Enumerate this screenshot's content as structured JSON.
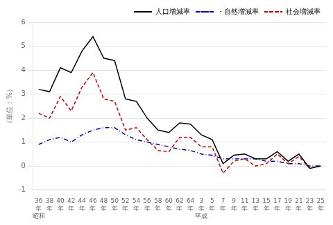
{
  "chart_data": {
    "type": "line",
    "y_label": "（単位：%）",
    "categories": [
      "36",
      "38",
      "40",
      "42",
      "44",
      "46",
      "48",
      "50",
      "52",
      "54",
      "56",
      "58",
      "60",
      "62",
      "64",
      "3",
      "5",
      "7",
      "9",
      "11",
      "13",
      "15",
      "17",
      "19",
      "21",
      "23",
      "25"
    ],
    "series": [
      {
        "name": "人口増減率",
        "color": "#000000",
        "line_style": "solid",
        "marker": "none",
        "values": [
          3.2,
          3.1,
          4.1,
          3.9,
          4.8,
          5.4,
          4.5,
          4.4,
          2.8,
          2.7,
          2.0,
          1.5,
          1.4,
          1.8,
          1.75,
          1.3,
          1.1,
          0.1,
          0.45,
          0.5,
          0.3,
          0.3,
          0.6,
          0.2,
          0.5,
          -0.1,
          0.0
        ]
      },
      {
        "name": "・自然増減率",
        "color": "#0000bb",
        "line_style": "dashdot",
        "marker": "none",
        "values": [
          0.9,
          1.1,
          1.2,
          1.0,
          1.3,
          1.5,
          1.6,
          1.6,
          1.3,
          1.1,
          1.0,
          0.9,
          0.8,
          0.7,
          0.65,
          0.5,
          0.45,
          0.3,
          0.3,
          0.3,
          0.3,
          0.2,
          0.2,
          0.1,
          0.1,
          0.0,
          0.0
        ]
      },
      {
        "name": "社会増減率",
        "color": "#cc0000",
        "line_style": "dashed",
        "marker": "none",
        "values": [
          2.2,
          2.0,
          2.9,
          2.3,
          3.3,
          3.9,
          2.8,
          2.7,
          1.5,
          1.6,
          1.1,
          0.65,
          0.6,
          1.2,
          1.2,
          0.8,
          0.8,
          -0.3,
          0.2,
          0.3,
          0.0,
          0.1,
          0.5,
          0.1,
          0.4,
          -0.1,
          0.0
        ]
      }
    ],
    "annotations": [
      {
        "text": "年",
        "category": "36"
      },
      {
        "text": "年",
        "category": "38"
      },
      {
        "text": "年",
        "category": "40"
      },
      {
        "text": "年",
        "category": "42"
      },
      {
        "text": "年",
        "category": "44"
      },
      {
        "text": "年",
        "category": "46"
      },
      {
        "text": "年",
        "category": "48"
      },
      {
        "text": "年",
        "category": "50"
      },
      {
        "text": "年",
        "category": "52"
      },
      {
        "text": "年",
        "category": "54"
      },
      {
        "text": "年",
        "category": "56"
      },
      {
        "text": "年",
        "category": "58"
      },
      {
        "text": "年",
        "category": "60"
      },
      {
        "text": "年",
        "category": "62"
      },
      {
        "text": "年",
        "category": "64"
      },
      {
        "text": "年",
        "category": "3"
      },
      {
        "text": "年",
        "category": "5"
      },
      {
        "text": "年",
        "category": "7"
      },
      {
        "text": "年",
        "category": "9"
      },
      {
        "text": "年",
        "category": "11"
      },
      {
        "text": "年",
        "category": "13"
      },
      {
        "text": "年",
        "category": "15"
      },
      {
        "text": "年",
        "category": "17"
      },
      {
        "text": "年",
        "category": "19"
      },
      {
        "text": "年",
        "category": "21"
      },
      {
        "text": "年",
        "category": "23"
      },
      {
        "text": "年",
        "category": "25"
      },
      {
        "text": "昭和",
        "category": "36"
      },
      {
        "text": "平成",
        "category": "3"
      }
    ],
    "ylim": [
      -1,
      6
    ],
    "yticks": [
      -1,
      0,
      1,
      2,
      3,
      4,
      5,
      6
    ],
    "grid": true,
    "legend": "upper right"
  }
}
